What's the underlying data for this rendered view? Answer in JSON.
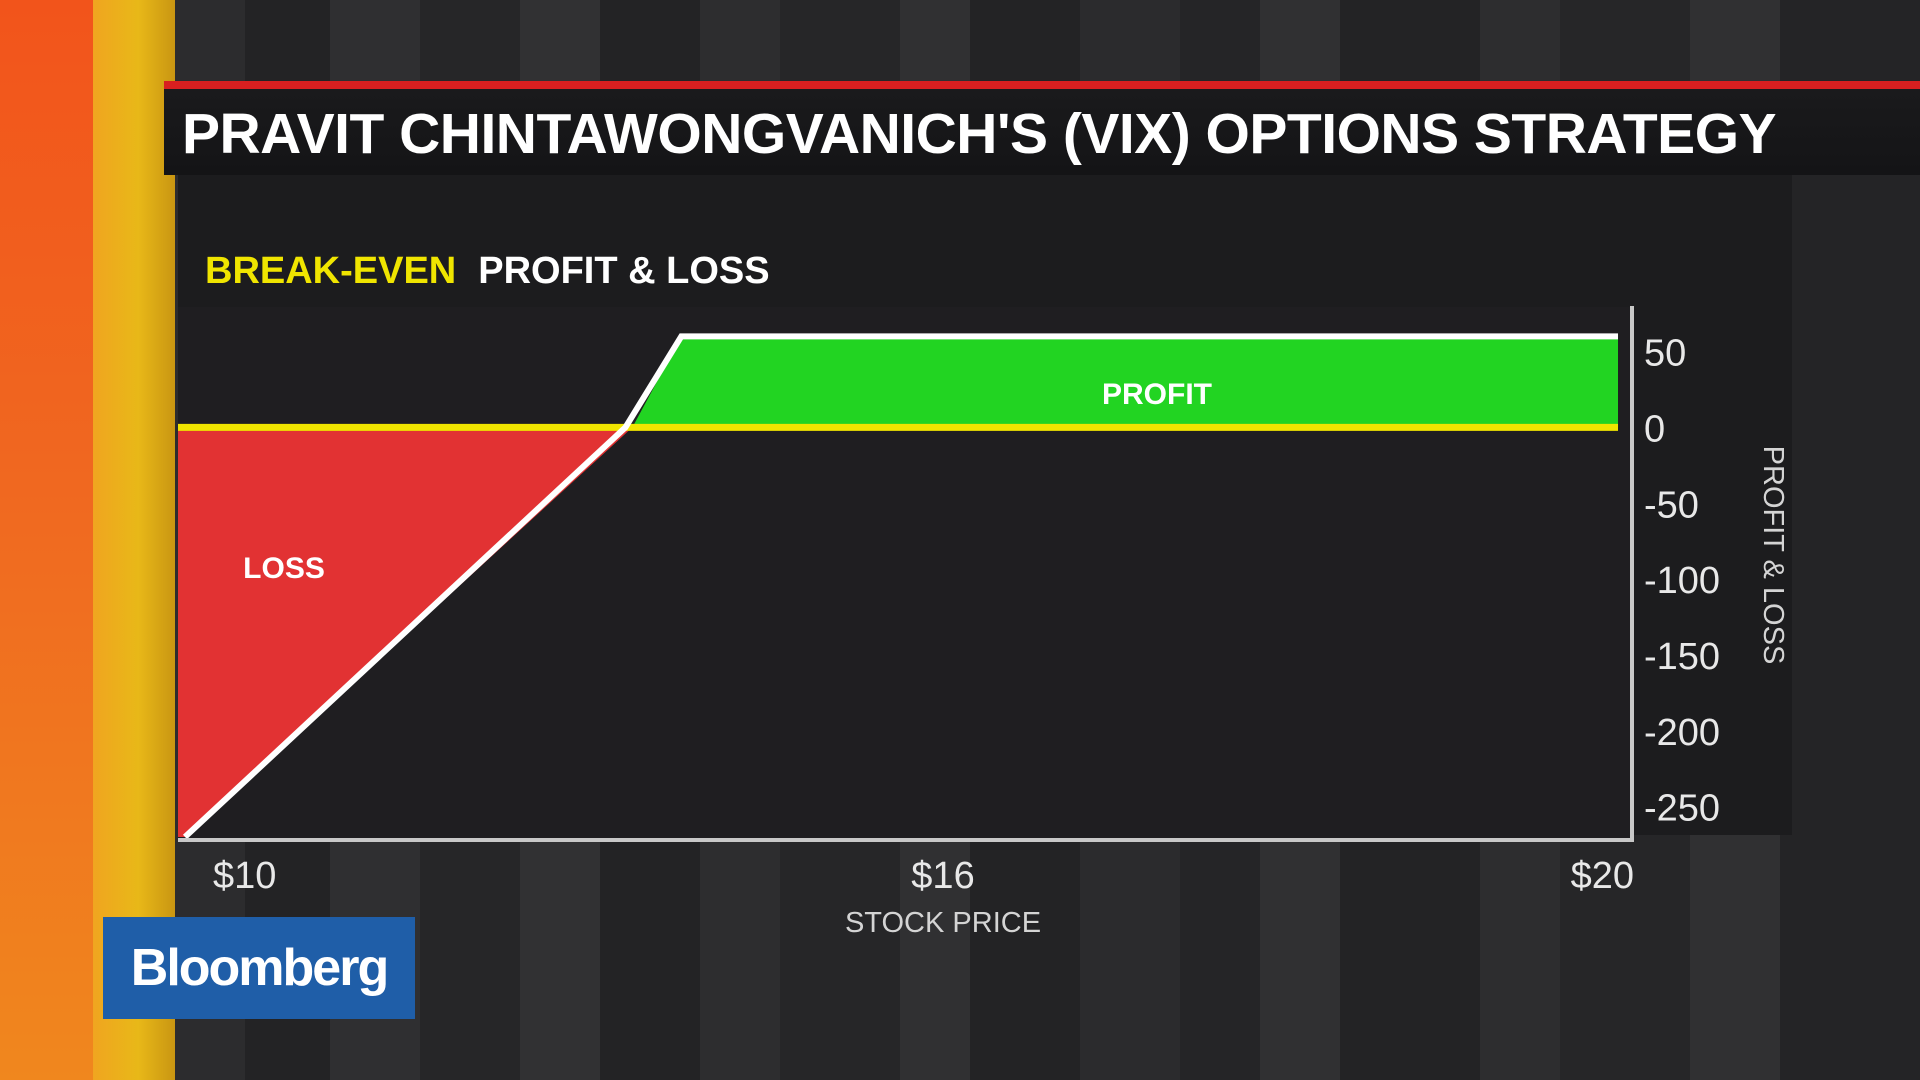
{
  "title": "PRAVIT CHINTAWONGVANICH'S (VIX) OPTIONS STRATEGY",
  "logo": "Bloomberg",
  "chart_data": {
    "type": "line",
    "legend": [
      {
        "label": "BREAK-EVEN",
        "color": "#f0e500"
      },
      {
        "label": "PROFIT & LOSS",
        "color": "#ffffff"
      }
    ],
    "xlabel": "STOCK PRICE",
    "ylabel": "PROFIT & LOSS",
    "x_ticks": [
      {
        "value": 10,
        "label": "$10"
      },
      {
        "value": 16,
        "label": "$16"
      },
      {
        "value": 20,
        "label": "$20"
      }
    ],
    "y_ticks": [
      {
        "value": 50,
        "label": "50"
      },
      {
        "value": 0,
        "label": "0"
      },
      {
        "value": -50,
        "label": "-50"
      },
      {
        "value": -100,
        "label": "-100"
      },
      {
        "value": -150,
        "label": "-150"
      },
      {
        "value": -200,
        "label": "-200"
      },
      {
        "value": -250,
        "label": "-250"
      }
    ],
    "xlim": [
      9.7,
      20.1
    ],
    "ylim": [
      -272,
      84
    ],
    "series": [
      {
        "color": "#ffffff",
        "x": [
          9.75,
          12.9,
          13.3,
          20.0
        ],
        "y": [
          -270,
          0,
          60,
          60
        ]
      }
    ],
    "breakeven": 0,
    "breakeven_x": 12.95,
    "regions": [
      {
        "label": "PROFIT",
        "color": "#22d422"
      },
      {
        "label": "LOSS",
        "color": "#e23233"
      }
    ],
    "grid": false,
    "legend_position": "top-left"
  },
  "colors": {
    "panel": "#1c1c1e",
    "axis": "#c8c8c8",
    "brand": "#1f5ea8"
  }
}
